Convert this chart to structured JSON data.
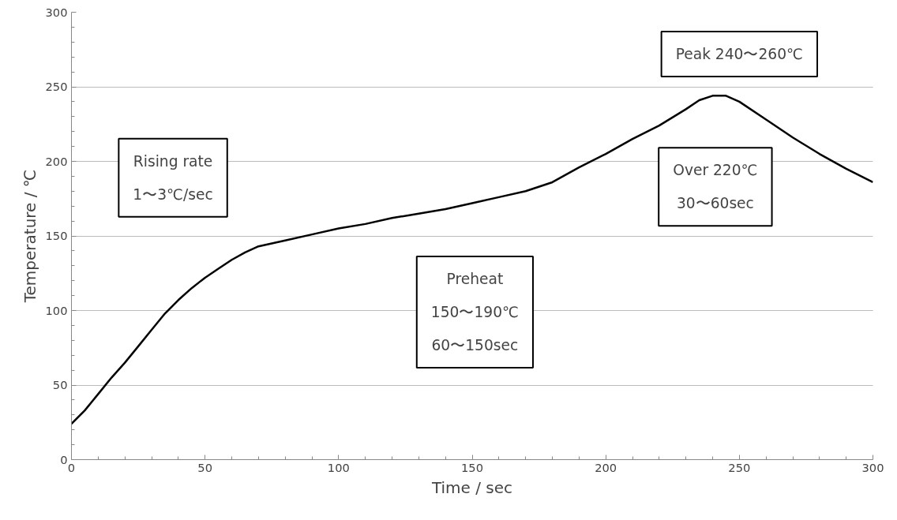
{
  "chart_data": {
    "type": "line",
    "xlabel": "Time / sec",
    "ylabel": "Temperature / ℃",
    "x": [
      0,
      5,
      10,
      15,
      20,
      25,
      30,
      35,
      40,
      45,
      50,
      55,
      60,
      65,
      70,
      75,
      80,
      90,
      100,
      110,
      120,
      130,
      140,
      150,
      160,
      170,
      180,
      190,
      200,
      210,
      220,
      230,
      235,
      240,
      245,
      250,
      260,
      270,
      280,
      290,
      300
    ],
    "series": [
      {
        "color": "#000000",
        "values": [
          24,
          33,
          44,
          55,
          65,
          76,
          87,
          98,
          107,
          115,
          122,
          128,
          134,
          139,
          143,
          145,
          147,
          151,
          155,
          158,
          162,
          165,
          168,
          172,
          176,
          180,
          186,
          196,
          205,
          215,
          224,
          235,
          241,
          244,
          244,
          240,
          228,
          216,
          205,
          195,
          186
        ]
      }
    ],
    "xlim": [
      0,
      300
    ],
    "ylim": [
      0,
      300
    ],
    "xticks": [
      0,
      50,
      100,
      150,
      200,
      250,
      300
    ],
    "yticks": [
      0,
      50,
      100,
      150,
      200,
      250,
      300
    ],
    "grid": "y",
    "line_style": "solid",
    "annotations": [
      "Rising rate\n1〜3℃/sec",
      "Peak 240〜260℃",
      "Over 220℃\n30〜60sec",
      "Preheat\n150〜190℃\n60〜150sec"
    ]
  }
}
